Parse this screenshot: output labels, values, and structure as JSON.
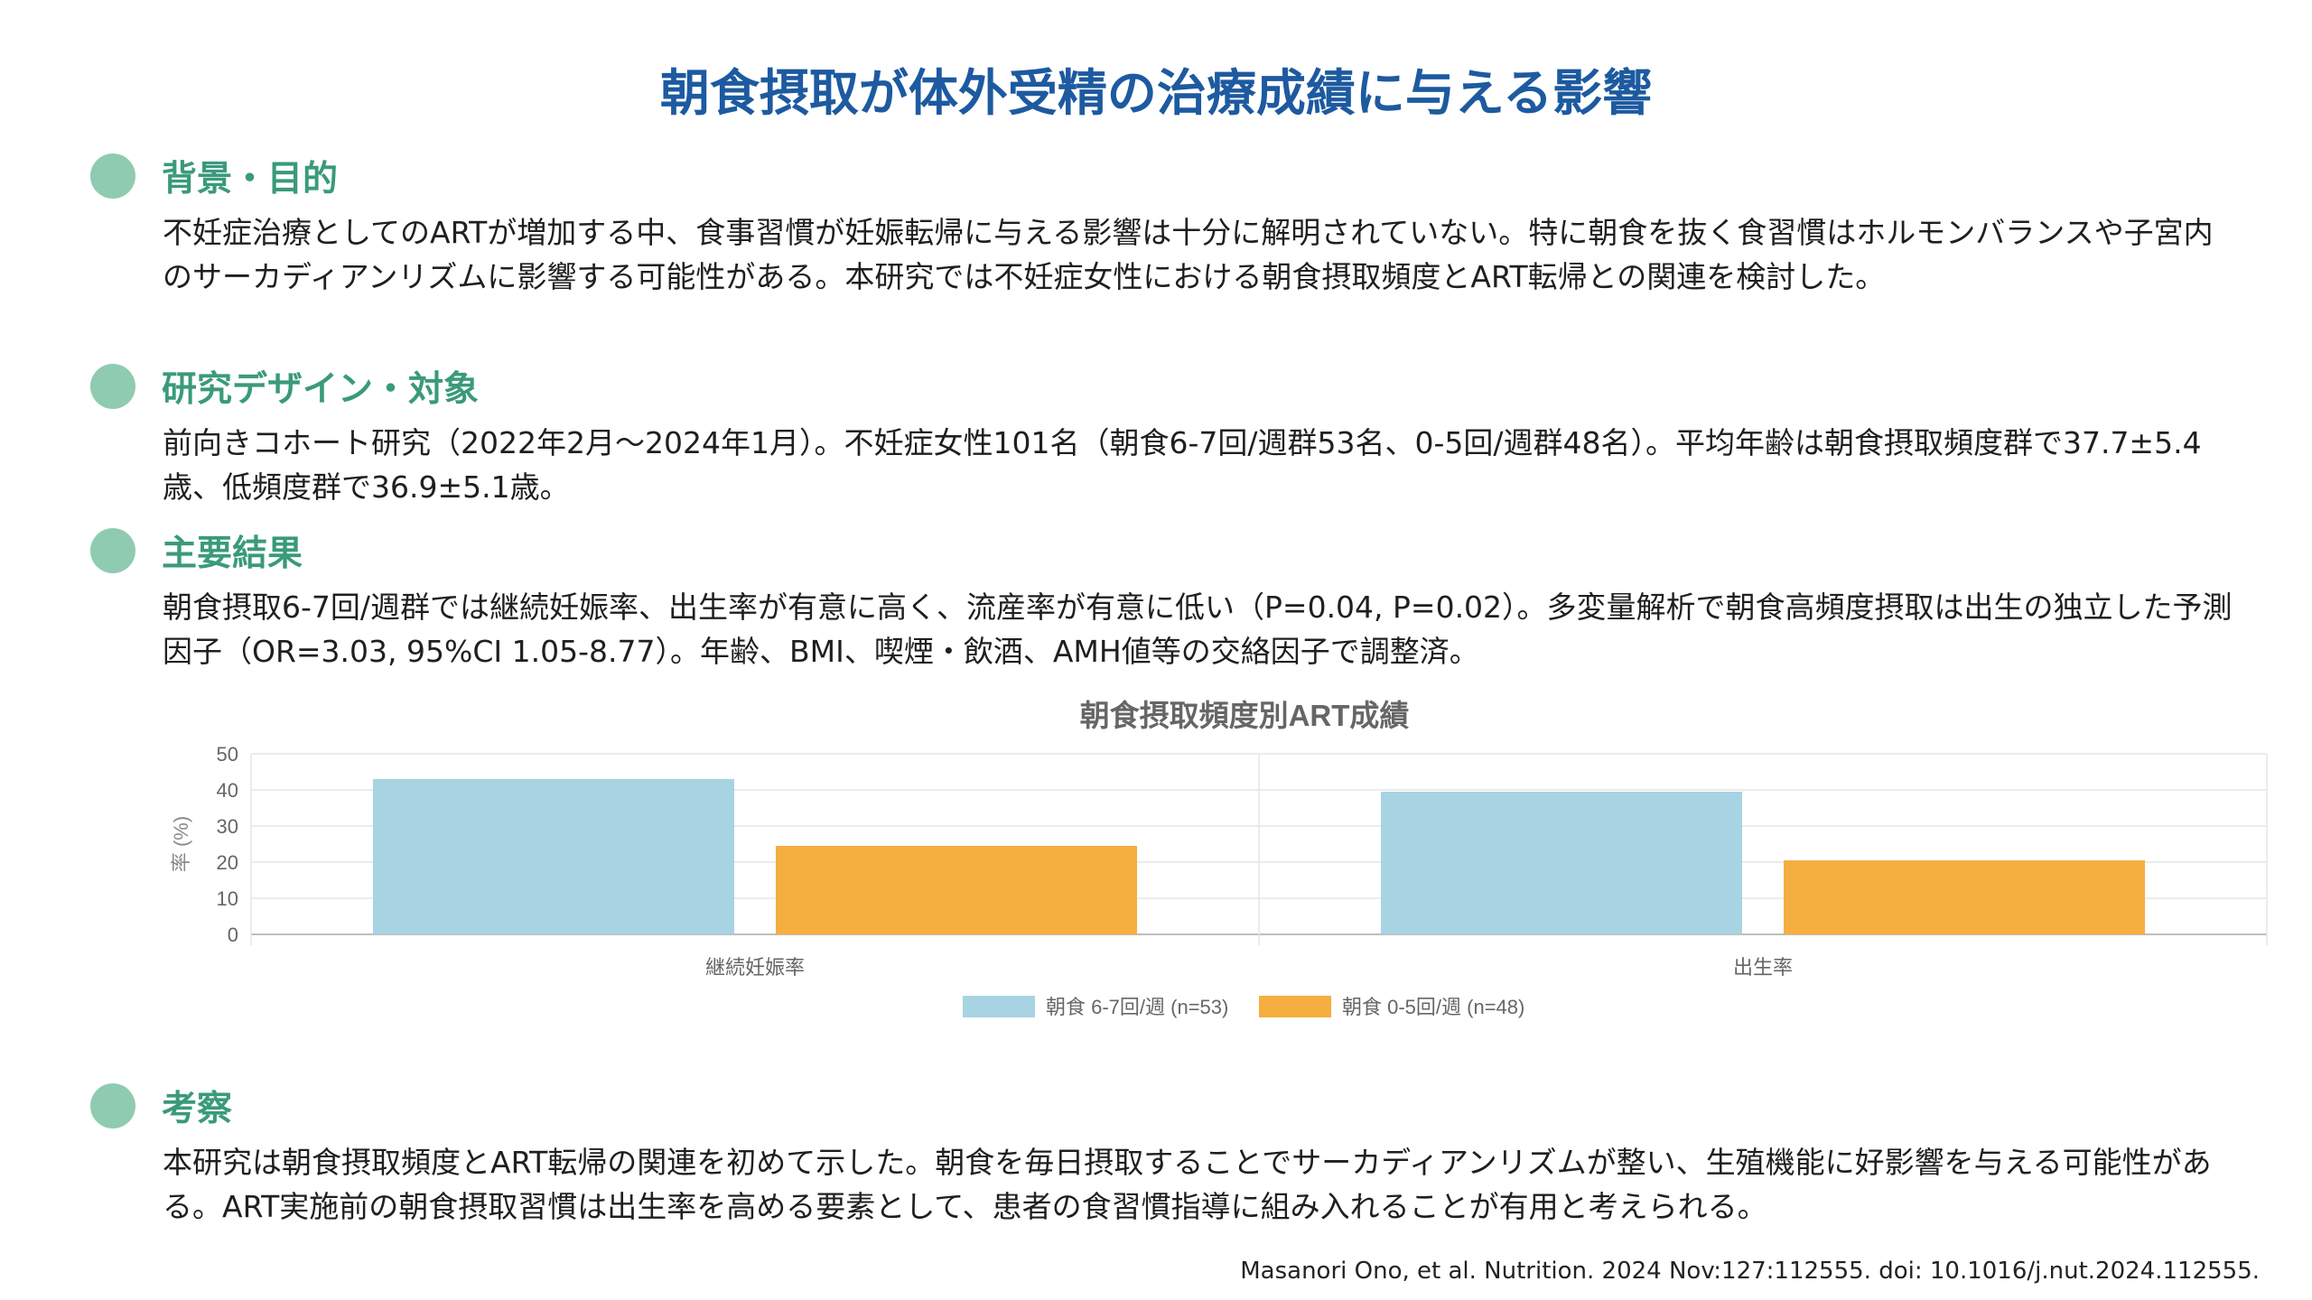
{
  "title": "朝食摂取が体外受精の治療成績に与える影響",
  "sections": [
    {
      "heading": "背景・目的",
      "body": "不妊症治療としてのARTが増加する中、食事習慣が妊娠転帰に与える影響は十分に解明されていない。特に朝食を抜く食習慣はホルモンバランスや子宮内のサーカディアンリズムに影響する可能性がある。本研究では不妊症女性における朝食摂取頻度とART転帰との関連を検討した。"
    },
    {
      "heading": "研究デザイン・対象",
      "body": "前向きコホート研究（2022年2月〜2024年1月）。不妊症女性101名（朝食6-7回/週群53名、0-5回/週群48名）。平均年齢は朝食摂取頻度群で37.7±5.4歳、低頻度群で36.9±5.1歳。"
    },
    {
      "heading": "主要結果",
      "body": "朝食摂取6-7回/週群では継続妊娠率、出生率が有意に高く、流産率が有意に低い（P=0.04, P=0.02）。多変量解析で朝食高頻度摂取は出生の独立した予測因子（OR=3.03, 95%CI 1.05-8.77）。年齢、BMI、喫煙・飲酒、AMH値等の交絡因子で調整済。"
    },
    {
      "heading": "考察",
      "body": "本研究は朝食摂取頻度とART転帰の関連を初めて示した。朝食を毎日摂取することでサーカディアンリズムが整い、生殖機能に好影響を与える可能性がある。ART実施前の朝食摂取習慣は出生率を高める要素として、患者の食習慣指導に組み入れることが有用と考えられる。"
    }
  ],
  "chart_data": {
    "type": "bar",
    "title": "朝食摂取頻度別ART成績",
    "ylabel": "率 (%)",
    "xlabel": "",
    "ylim": [
      0,
      50
    ],
    "yticks": [
      0,
      10,
      20,
      30,
      40,
      50
    ],
    "categories": [
      "継続妊娠率",
      "出生率"
    ],
    "series": [
      {
        "name": "朝食 6-7回/週 (n=53)",
        "values": [
          43,
          39.5
        ],
        "color": "#a7d3e3"
      },
      {
        "name": "朝食 0-5回/週 (n=48)",
        "values": [
          24.5,
          20.5
        ],
        "color": "#f5ae40"
      }
    ],
    "grid": true,
    "legend": "bottom-center"
  },
  "citation": "Masanori Ono, et al. Nutrition. 2024 Nov:127:112555. doi: 10.1016/j.nut.2024.112555.",
  "colors": {
    "title": "#1d5aa0",
    "heading": "#3a9a7b",
    "dot": "#8fcbb1"
  }
}
